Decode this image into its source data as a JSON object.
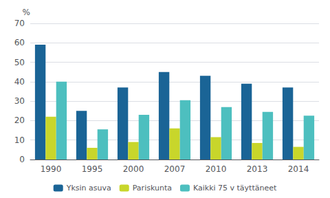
{
  "chart_data": {
    "type": "bar",
    "categories": [
      "1990",
      "1995",
      "2000",
      "2007",
      "2010",
      "2013",
      "2014"
    ],
    "series": [
      {
        "name": "Yksin asuva",
        "color": "#1A6496",
        "values": [
          59,
          25,
          37,
          45,
          43,
          39,
          37
        ]
      },
      {
        "name": "Pariskunta",
        "color": "#C8D62B",
        "values": [
          22,
          6,
          9,
          16,
          11.5,
          8.5,
          6.5
        ]
      },
      {
        "name": "Kaikki 75 v täyttäneet",
        "color": "#4DBFBF",
        "values": [
          40,
          15.5,
          23,
          30.5,
          27,
          24.5,
          22.5
        ]
      }
    ],
    "ylabel": "%",
    "ylim": [
      0,
      70
    ],
    "yticks": [
      0,
      10,
      20,
      30,
      40,
      50,
      60,
      70
    ],
    "grid": true,
    "legend": "bottom"
  }
}
